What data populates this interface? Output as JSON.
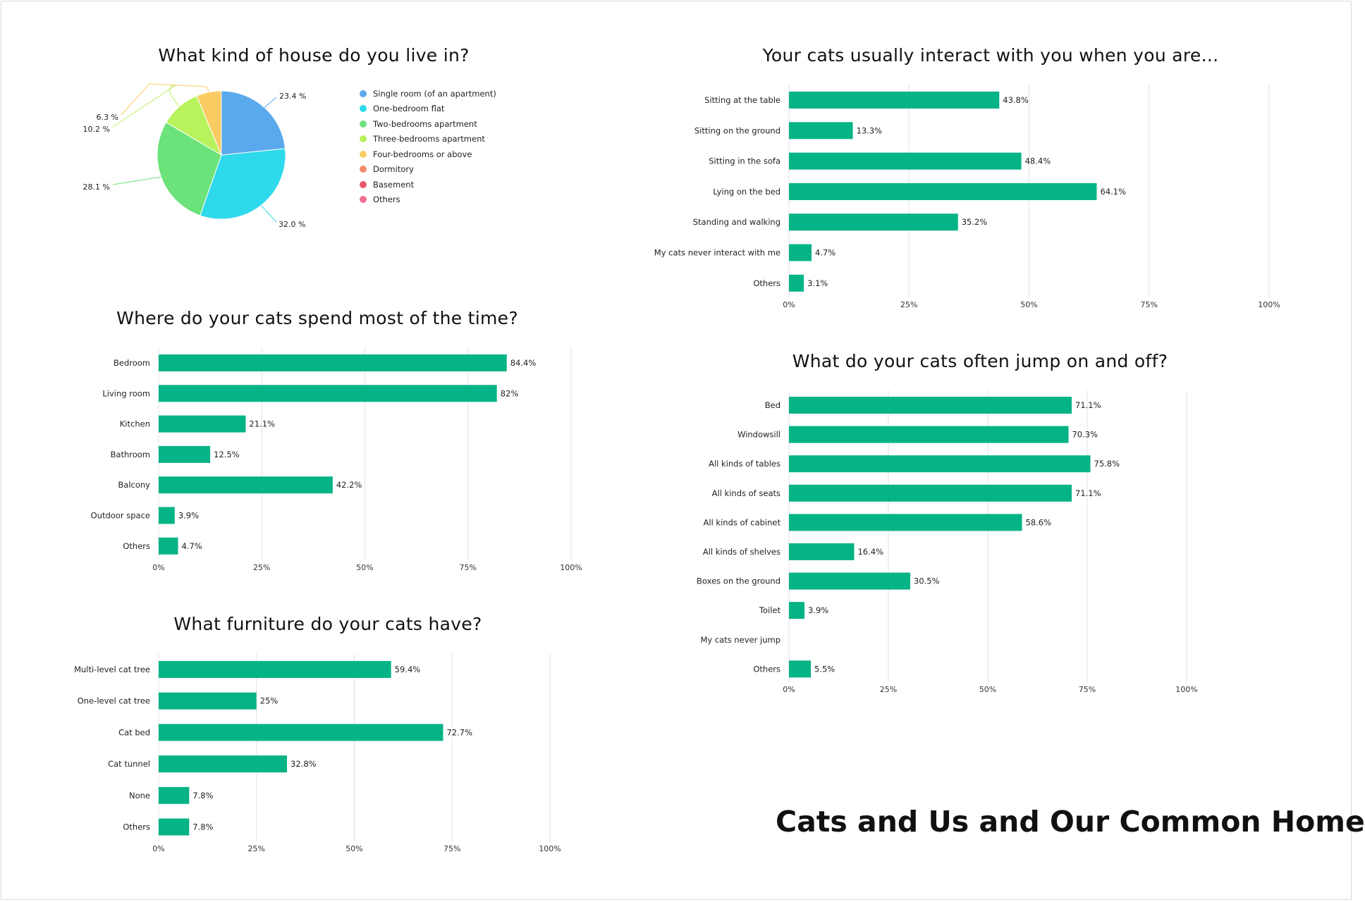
{
  "poster_title": "Cats and Us and Our Common Home",
  "colors": {
    "bar": "#04b386",
    "grid": "#e2e2e8"
  },
  "chart_data": [
    {
      "id": "house",
      "type": "pie",
      "title": "What kind of house do you live in?",
      "categories": [
        "Single room (of an apartment)",
        "One-bedroom flat",
        "Two-bedrooms apartment",
        "Three-bedrooms apartment",
        "Four-bedrooms or above",
        "Dormitory",
        "Basement",
        "Others"
      ],
      "values": [
        23.4,
        32.0,
        28.1,
        10.2,
        6.3,
        0,
        0,
        0
      ],
      "labels": [
        "23.4 %",
        "32.0 %",
        "28.1 %",
        "10.2 %",
        "6.3 %",
        "",
        "",
        ""
      ],
      "colors": [
        "#5aa9ec",
        "#2ed9ec",
        "#6be37a",
        "#b8f25c",
        "#fbcb63",
        "#f4896c",
        "#e8566b",
        "#f36e93"
      ],
      "legend": "right"
    },
    {
      "id": "interact",
      "type": "bar",
      "title": "Your cats usually interact with you when you are...",
      "categories": [
        "Sitting at the table",
        "Sitting on the ground",
        "Sitting in the sofa",
        "Lying on the bed",
        "Standing and walking",
        "My cats never interact with me",
        "Others"
      ],
      "values": [
        43.8,
        13.3,
        48.4,
        64.1,
        35.2,
        4.7,
        3.1
      ],
      "labels": [
        "43.8%",
        "13.3%",
        "48.4%",
        "64.1%",
        "35.2%",
        "4.7%",
        "3.1%"
      ],
      "xlim": [
        0,
        100
      ],
      "ticks": [
        "0%",
        "25%",
        "50%",
        "75%",
        "100%"
      ],
      "grid": true
    },
    {
      "id": "spend",
      "type": "bar",
      "title": "Where do your cats spend most of the time?",
      "categories": [
        "Bedroom",
        "Living room",
        "Kitchen",
        "Bathroom",
        "Balcony",
        "Outdoor space",
        "Others"
      ],
      "values": [
        84.4,
        82,
        21.1,
        12.5,
        42.2,
        3.9,
        4.7
      ],
      "labels": [
        "84.4%",
        "82%",
        "21.1%",
        "12.5%",
        "42.2%",
        "3.9%",
        "4.7%"
      ],
      "xlim": [
        0,
        100
      ],
      "ticks": [
        "0%",
        "25%",
        "50%",
        "75%",
        "100%"
      ],
      "grid": true
    },
    {
      "id": "jump",
      "type": "bar",
      "title": "What do your cats often jump on and off?",
      "categories": [
        "Bed",
        "Windowsill",
        "All kinds of tables",
        "All kinds of seats",
        "All kinds of cabinet",
        "All kinds of shelves",
        "Boxes on the ground",
        "Toilet",
        "My cats never jump",
        "Others"
      ],
      "values": [
        71.1,
        70.3,
        75.8,
        71.1,
        58.6,
        16.4,
        30.5,
        3.9,
        0,
        5.5
      ],
      "labels": [
        "71.1%",
        "70.3%",
        "75.8%",
        "71.1%",
        "58.6%",
        "16.4%",
        "30.5%",
        "3.9%",
        "",
        "5.5%"
      ],
      "xlim": [
        0,
        100
      ],
      "ticks": [
        "0%",
        "25%",
        "50%",
        "75%",
        "100%"
      ],
      "grid": true
    },
    {
      "id": "furniture",
      "type": "bar",
      "title": "What furniture do your cats have?",
      "categories": [
        "Multi-level cat tree",
        "One-level cat tree",
        "Cat bed",
        "Cat tunnel",
        "None",
        "Others"
      ],
      "values": [
        59.4,
        25,
        72.7,
        32.8,
        7.8,
        7.8
      ],
      "labels": [
        "59.4%",
        "25%",
        "72.7%",
        "32.8%",
        "7.8%",
        "7.8%"
      ],
      "xlim": [
        0,
        100
      ],
      "ticks": [
        "0%",
        "25%",
        "50%",
        "75%",
        "100%"
      ],
      "grid": true
    }
  ]
}
